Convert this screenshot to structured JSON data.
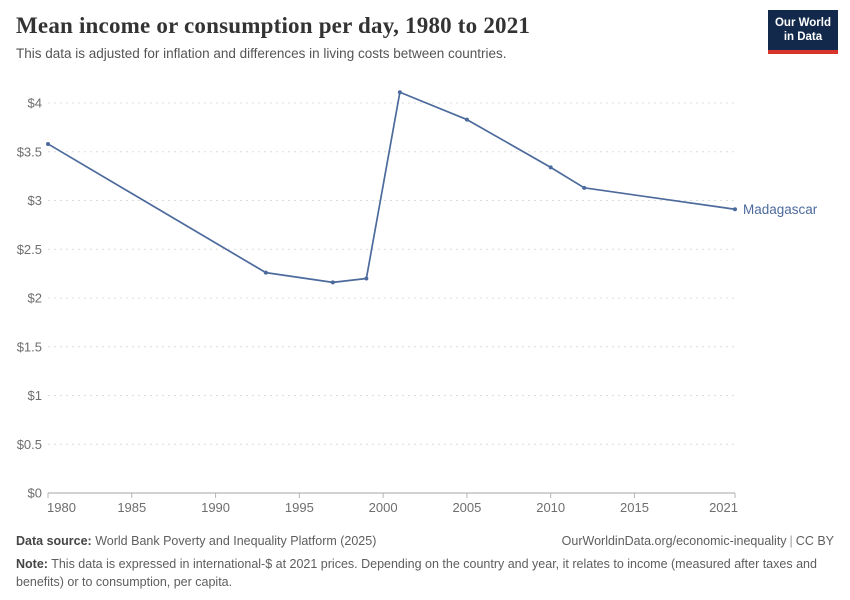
{
  "header": {
    "title": "Mean income or consumption per day, 1980 to 2021",
    "subtitle": "This data is adjusted for inflation and differences in living costs between countries.",
    "logo": {
      "line1": "Our World",
      "line2": "in Data",
      "bg_color": "#12294B",
      "stripe_color": "#D7352B"
    }
  },
  "chart_data": {
    "type": "line",
    "title": "Mean income or consumption per day, 1980 to 2021",
    "xlabel": "",
    "ylabel": "",
    "xlim": [
      1980,
      2021
    ],
    "ylim": [
      0,
      4.3
    ],
    "grid": "horizontal-dashed",
    "legend_position": "end-of-line-label",
    "x_ticks": [
      1980,
      1985,
      1990,
      1995,
      2000,
      2005,
      2010,
      2015,
      2021
    ],
    "x_tick_labels": [
      "1980",
      "1985",
      "1990",
      "1995",
      "2000",
      "2005",
      "2010",
      "2015",
      "2021"
    ],
    "y_ticks": [
      0,
      0.5,
      1,
      1.5,
      2,
      2.5,
      3,
      3.5,
      4
    ],
    "y_tick_labels": [
      "$0",
      "$0.5",
      "$1",
      "$1.5",
      "$2",
      "$2.5",
      "$3",
      "$3.5",
      "$4"
    ],
    "series": [
      {
        "name": "Madagascar",
        "color": "#4C6A9C",
        "x": [
          1980,
          1993,
          1997,
          1999,
          2001,
          2005,
          2010,
          2012,
          2021
        ],
        "y": [
          3.58,
          2.26,
          2.16,
          2.2,
          4.11,
          3.83,
          3.34,
          3.13,
          2.91
        ]
      }
    ]
  },
  "footer": {
    "source_label": "Data source:",
    "source_text": "World Bank Poverty and Inequality Platform (2025)",
    "link_text": "OurWorldinData.org/economic-inequality",
    "divider": "|",
    "license": "CC BY",
    "note_label": "Note:",
    "note_text": "This data is expressed in international-$ at 2021 prices. Depending on the country and year, it relates to income (measured after taxes and benefits) or to consumption, per capita."
  },
  "colors": {
    "line": "#4C6A9C",
    "gridline": "#dcdcdc",
    "axis_line": "#a5a5a5",
    "tick_mark": "#b5b5b5",
    "tick_label": "#6e6e6e",
    "title": "#333333",
    "subtitle": "#555555",
    "footer_text": "#5e5e5e"
  }
}
